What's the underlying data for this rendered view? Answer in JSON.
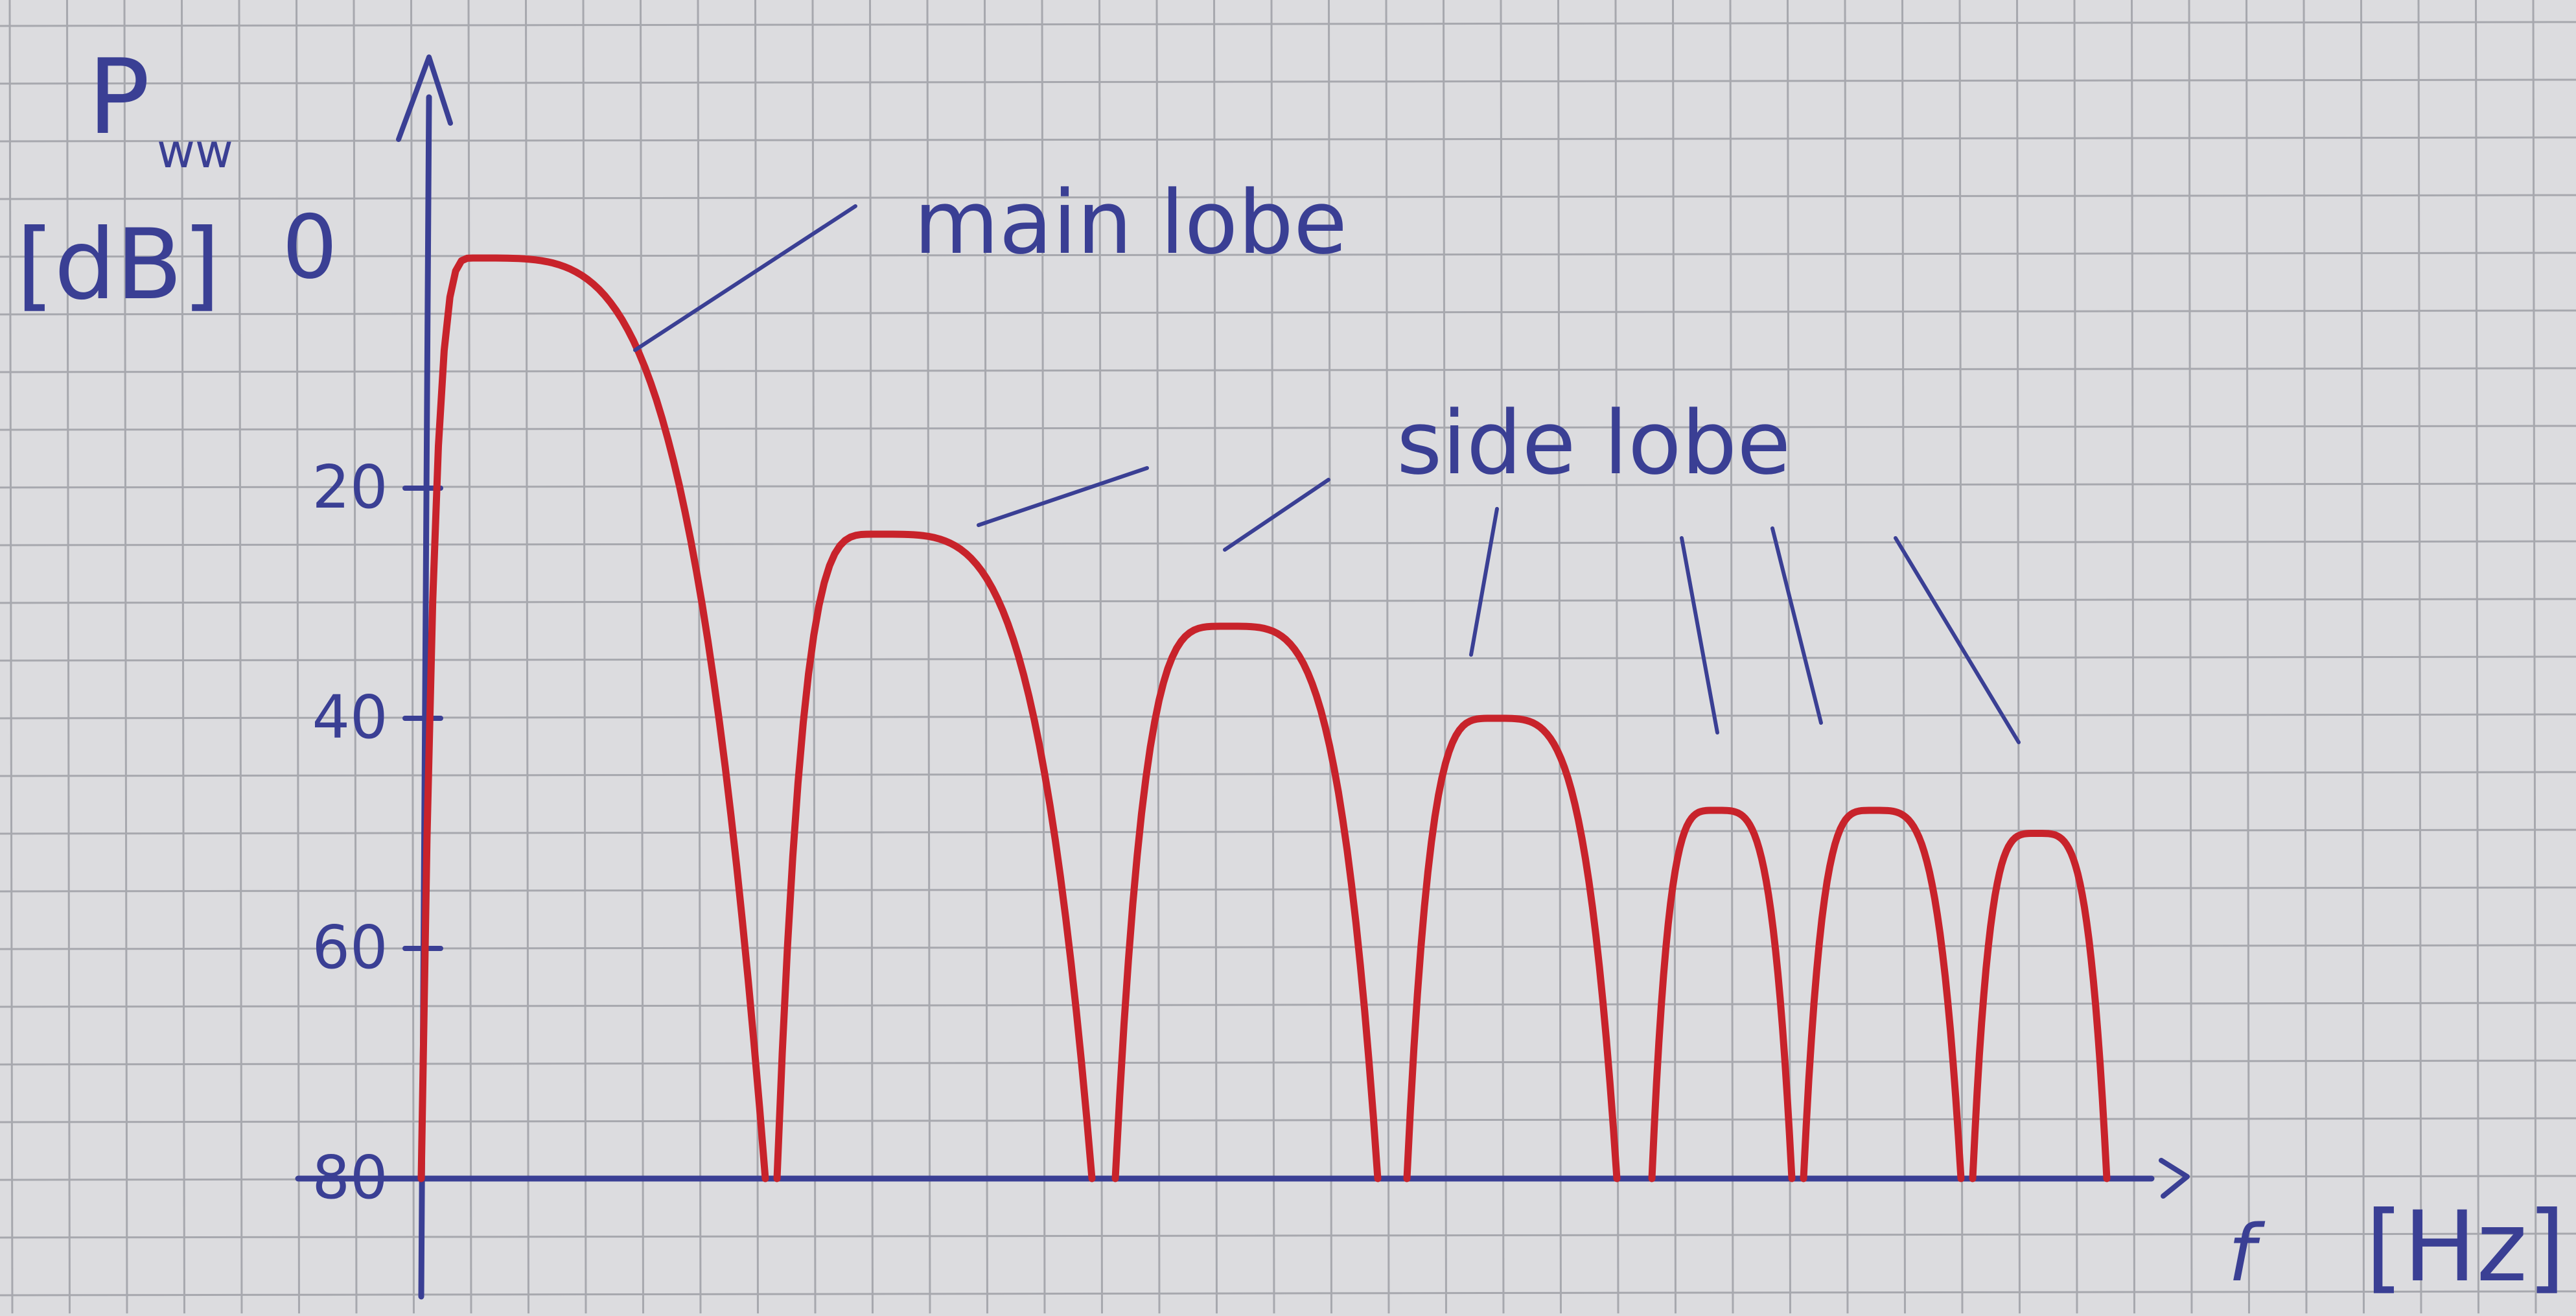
{
  "chart_data": {
    "type": "line",
    "title": "",
    "ylabel_symbol": "P",
    "ylabel_subscript": "ww",
    "ylabel_unit": "[dB]",
    "xlabel": "f",
    "xlabel_unit": "[Hz]",
    "ylim": [
      0,
      80
    ],
    "y_inverted": true,
    "y_ticks": [
      "0",
      "20",
      "40",
      "60",
      "80"
    ],
    "y_tick_values": [
      0,
      20,
      40,
      60,
      80
    ],
    "grid": true,
    "lobes": [
      {
        "name": "main lobe",
        "start": 0.0,
        "end": 2.95,
        "peak_x": 0.45,
        "peak_db": 0
      },
      {
        "start": 3.05,
        "end": 5.75,
        "peak_x": 3.9,
        "peak_db": 24
      },
      {
        "start": 5.95,
        "end": 8.2,
        "peak_x": 6.9,
        "peak_db": 32
      },
      {
        "start": 8.45,
        "end": 10.25,
        "peak_x": 9.2,
        "peak_db": 40
      },
      {
        "start": 10.55,
        "end": 11.75,
        "peak_x": 11.1,
        "peak_db": 48
      },
      {
        "start": 11.85,
        "end": 13.2,
        "peak_x": 12.45,
        "peak_db": 48
      },
      {
        "start": 13.3,
        "end": 14.45,
        "peak_x": 13.85,
        "peak_db": 50
      }
    ],
    "annotations": [
      "main lobe",
      "side lobe"
    ],
    "colors": {
      "paper": "#dcdcdf",
      "grid": "#a7a8ae",
      "ink": "#3a3f94",
      "curve": "#c8232b"
    }
  }
}
